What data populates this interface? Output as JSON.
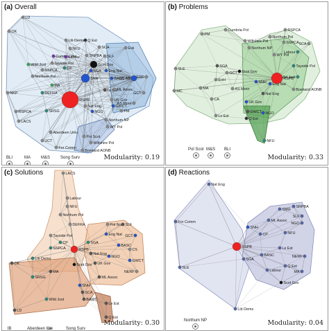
{
  "panels": [
    {
      "id": "a",
      "label": "(a)",
      "title": "Overall",
      "modularity_label": "Modularity:",
      "modularity": "0.19",
      "nodes": [
        "LD",
        "OK",
        "Lib Dems",
        "Q Est",
        "NFU",
        "SCA",
        "SRPBA",
        "SLF",
        "Esk",
        "Cumbria Pol",
        "Labour",
        "Tayside Pol",
        "Wild Just",
        "SSPCA",
        "Northum Pol",
        "Scot Gov",
        "SGA",
        "Eng Nat",
        "NERF",
        "CP",
        "SNH",
        "BASC",
        "CS AB",
        "NKP",
        "DEFRA",
        "RSPB",
        "Le Est",
        "ML Assoc",
        "GCT",
        "MA",
        "UK Gov",
        "AS Moor",
        "RSPCA",
        "LACS",
        "SRSG",
        "Nat Eng",
        "GWCT",
        "NGO",
        "PM",
        "Northum NP",
        "WY Pol",
        "Aberdeen Univ",
        "UCT",
        "Pol Scot",
        "For Comm",
        "Wiltshire Pol",
        "Bowland AONB"
      ],
      "isolates": [
        "BLI",
        "MA",
        "M&S",
        "Song Surv"
      ]
    },
    {
      "id": "b",
      "label": "(b)",
      "title": "Problems",
      "modularity_label": "Modularity:",
      "modularity": "0.33",
      "nodes": [
        "Cumbria Pol",
        "RSPCA",
        "PM",
        "Northum Pol",
        "SSPCA",
        "Wiltshire Pol",
        "SCA",
        "Northum NP",
        "Labour",
        "SLE",
        "WY Pol",
        "SGA",
        "Tayside Pol",
        "GCT",
        "Scot Gov",
        "Wild Just",
        "EoH",
        "SNH",
        "Eng Nat",
        "RSPB",
        "Bowland AONB",
        "AS Moor",
        "Nat Eng",
        "MA",
        "CA",
        "UK Gov",
        "GWCT",
        "NGO",
        "Lo Est",
        "MC",
        "Q Est",
        "NFU"
      ],
      "isolates": [
        "Pol Scot",
        "M&S",
        "BLI"
      ]
    },
    {
      "id": "c",
      "label": "(c)",
      "title": "Solutions",
      "modularity_label": "Modularity:",
      "modularity": "0.30",
      "nodes": [
        "LACS",
        "Labour",
        "NFU",
        "Northum Pol",
        "DEFRA",
        "Tayside Pol",
        "CP",
        "SSPCA",
        "Lib Dems",
        "MA",
        "OK",
        "SRSG",
        "Pol Scot",
        "SLF",
        "SGA",
        "Eng Nat",
        "GCT",
        "BASC",
        "Scot Gov",
        "RSPB",
        "Nat Eng",
        "CS",
        "NGO",
        "GWCT",
        "UK Gov",
        "NERF",
        "ML Assoc",
        "SNH",
        "SCA",
        "BAWC",
        "Wild Just",
        "LD",
        "Le Est",
        "Q Est"
      ],
      "isolates": [
        "IB",
        "Aberdeen Uni",
        "Le",
        "Song Surv"
      ]
    },
    {
      "id": "d",
      "label": "(d)",
      "title": "Reactions",
      "modularity_label": "Modularity:",
      "modularity": "0.04",
      "nodes": [
        "Nat Eng",
        "For Comm",
        "SMG",
        "SRPBA",
        "SLF",
        "ML Assoc",
        "NGO",
        "SNH",
        "CP",
        "NFU",
        "RSPB",
        "SGA",
        "Le Est",
        "BASC",
        "NERF",
        "SLE",
        "Q Est",
        "Labour",
        "MA",
        "Scot Gov",
        "Lib Dems"
      ],
      "isolates": [
        "Northum NP"
      ]
    }
  ]
}
